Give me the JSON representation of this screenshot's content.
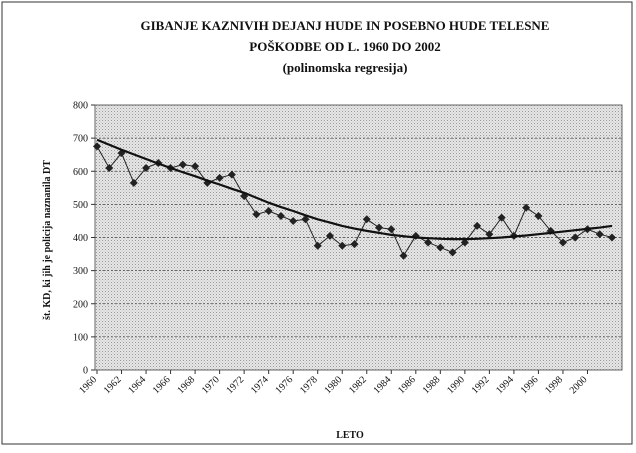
{
  "chart_data": {
    "type": "line",
    "title": "GIBANJE KAZNIVIH DEJANJ HUDE IN POSEBNO HUDE TELESNE POŠKODBE OD L. 1960 DO 2002",
    "subtitle": "(polinomska regresija)",
    "x_label": "LETO",
    "y_label": "št. KD, ki jih je policija naznanila DT",
    "x": [
      1960,
      1961,
      1962,
      1963,
      1964,
      1965,
      1966,
      1967,
      1968,
      1969,
      1970,
      1971,
      1972,
      1973,
      1974,
      1975,
      1976,
      1977,
      1978,
      1979,
      1980,
      1981,
      1982,
      1983,
      1984,
      1985,
      1986,
      1987,
      1988,
      1989,
      1990,
      1991,
      1992,
      1993,
      1994,
      1995,
      1996,
      1997,
      1998,
      1999,
      2000,
      2001,
      2002
    ],
    "series": [
      {
        "color": "#222222",
        "values": [
          675,
          610,
          655,
          565,
          610,
          625,
          610,
          620,
          615,
          565,
          580,
          590,
          525,
          470,
          480,
          465,
          450,
          455,
          375,
          405,
          375,
          380,
          455,
          430,
          425,
          345,
          405,
          385,
          370,
          355,
          385,
          435,
          410,
          460,
          405,
          490,
          465,
          420,
          385,
          400,
          425,
          410,
          400
        ]
      },
      {
        "color": "#111111",
        "values": [
          695,
          680,
          665,
          651,
          637,
          623,
          610,
          597,
          585,
          572,
          560,
          547,
          535,
          520,
          505,
          492,
          480,
          467,
          455,
          445,
          435,
          427,
          420,
          414,
          408,
          404,
          400,
          398,
          396,
          395,
          395,
          396,
          398,
          400,
          403,
          406,
          410,
          414,
          418,
          422,
          426,
          430,
          435
        ]
      }
    ],
    "xlim": [
      1960,
      2002
    ],
    "xticks": [
      1960,
      1962,
      1964,
      1966,
      1968,
      1970,
      1972,
      1974,
      1976,
      1978,
      1980,
      1982,
      1984,
      1986,
      1988,
      1990,
      1992,
      1994,
      1996,
      1998,
      2000
    ],
    "ylim": [
      0,
      800
    ],
    "yticks": [
      0,
      100,
      200,
      300,
      400,
      500,
      600,
      700,
      800
    ],
    "grid": true
  }
}
